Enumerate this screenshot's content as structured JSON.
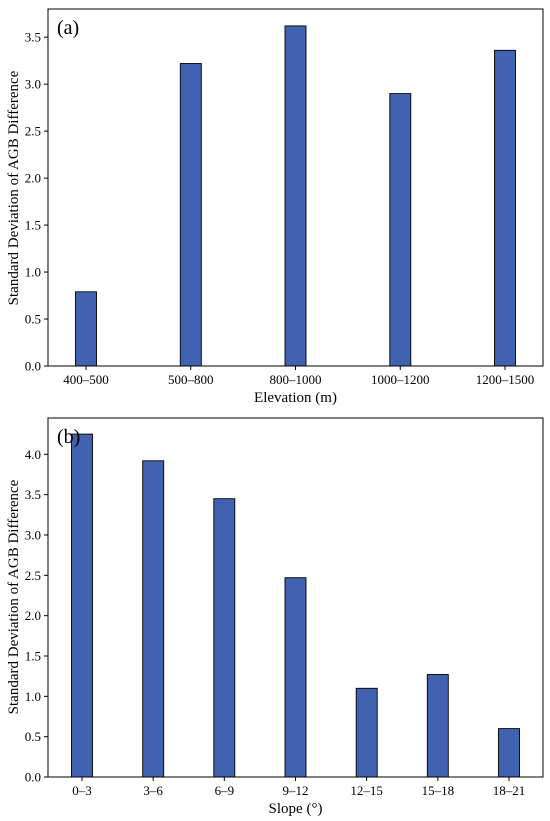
{
  "chart_data": [
    {
      "panel_label": "(a)",
      "type": "bar",
      "categories": [
        "400–500",
        "500–800",
        "800–1000",
        "1000–1200",
        "1200–1500"
      ],
      "values": [
        0.79,
        3.22,
        3.62,
        2.9,
        3.36
      ],
      "xlabel": "Elevation (m)",
      "ylabel": "Standard Deviation of AGB Difference",
      "ylim": [
        0,
        3.8
      ],
      "yticks": [
        "0.0",
        "0.5",
        "1.0",
        "1.5",
        "2.0",
        "2.5",
        "3.0",
        "3.5"
      ],
      "bar_color": "#4062b0",
      "grid": false
    },
    {
      "panel_label": "(b)",
      "type": "bar",
      "categories": [
        "0–3",
        "3–6",
        "6–9",
        "9–12",
        "12–15",
        "15–18",
        "18–21"
      ],
      "values": [
        4.25,
        3.92,
        3.45,
        2.47,
        1.1,
        1.27,
        0.6
      ],
      "xlabel": "Slope (°)",
      "ylabel": "Standard Deviation of AGB Difference",
      "ylim": [
        0,
        4.45
      ],
      "yticks": [
        "0.0",
        "0.5",
        "1.0",
        "1.5",
        "2.0",
        "2.5",
        "3.0",
        "3.5",
        "4.0"
      ],
      "bar_color": "#4062b0",
      "grid": false
    }
  ]
}
